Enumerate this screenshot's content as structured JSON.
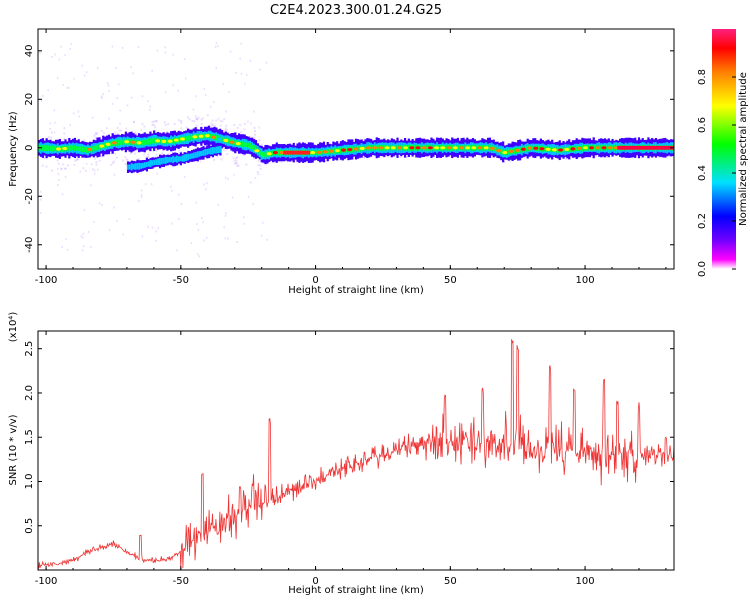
{
  "figure": {
    "title": "C2E4.2023.300.01.24.G25"
  },
  "chart_data": [
    {
      "type": "heatmap",
      "xlabel": "Height of straight line (km)",
      "ylabel": "Frequency (Hz)",
      "xlim": [
        -103,
        133
      ],
      "ylim": [
        -50,
        49
      ],
      "x_ticks": [
        -100,
        -50,
        0,
        50,
        100
      ],
      "y_ticks": [
        -40,
        -20,
        0,
        20,
        40
      ],
      "colorbar": {
        "label": "Normalized spectral amplitude",
        "range": [
          0.0,
          1.0
        ],
        "ticks": [
          0.0,
          0.2,
          0.4,
          0.6,
          0.8
        ],
        "colormap": [
          "#ff00ff",
          "#0000ff",
          "#00e0ff",
          "#00ff00",
          "#ffff00",
          "#ff0000",
          "#ff2080"
        ]
      },
      "main_band": [
        [
          -103,
          0.0
        ],
        [
          -95,
          -0.5
        ],
        [
          -90,
          0.0
        ],
        [
          -85,
          -1.0
        ],
        [
          -80,
          0.5
        ],
        [
          -75,
          2.0
        ],
        [
          -70,
          2.5
        ],
        [
          -65,
          2.0
        ],
        [
          -60,
          3.0
        ],
        [
          -55,
          2.5
        ],
        [
          -50,
          3.5
        ],
        [
          -45,
          4.5
        ],
        [
          -40,
          5.0
        ],
        [
          -35,
          3.5
        ],
        [
          -30,
          2.0
        ],
        [
          -25,
          1.0
        ],
        [
          -22,
          -1.0
        ],
        [
          -20,
          -3.0
        ],
        [
          -15,
          -2.0
        ],
        [
          -10,
          -2.0
        ],
        [
          0,
          -2.0
        ],
        [
          10,
          -1.0
        ],
        [
          20,
          0.0
        ],
        [
          30,
          0.0
        ],
        [
          40,
          0.0
        ],
        [
          50,
          0.0
        ],
        [
          60,
          0.0
        ],
        [
          65,
          0.0
        ],
        [
          70,
          -2.0
        ],
        [
          75,
          -1.0
        ],
        [
          80,
          0.0
        ],
        [
          90,
          -1.0
        ],
        [
          100,
          0.0
        ],
        [
          110,
          0.0
        ],
        [
          120,
          0.0
        ],
        [
          133,
          0.0
        ]
      ],
      "lower_band": [
        [
          -70,
          -8.0
        ],
        [
          -65,
          -7.5
        ],
        [
          -60,
          -6.0
        ],
        [
          -55,
          -5.0
        ],
        [
          -50,
          -4.5
        ],
        [
          -45,
          -3.0
        ],
        [
          -40,
          -1.5
        ],
        [
          -35,
          -0.5
        ]
      ]
    },
    {
      "type": "line",
      "xlabel": "Height of straight line (km)",
      "ylabel": "SNR (10 * v/v)",
      "scale_label": "(x10⁴)",
      "xlim": [
        -103,
        133
      ],
      "ylim": [
        0,
        2.7
      ],
      "x_ticks": [
        -100,
        -50,
        0,
        50,
        100
      ],
      "y_ticks": [
        0.5,
        1.0,
        1.5,
        2.0,
        2.5
      ],
      "color": "#ee3333",
      "trend": [
        [
          -103,
          0.05
        ],
        [
          -95,
          0.07
        ],
        [
          -90,
          0.12
        ],
        [
          -85,
          0.2
        ],
        [
          -80,
          0.25
        ],
        [
          -75,
          0.3
        ],
        [
          -70,
          0.2
        ],
        [
          -65,
          0.12
        ],
        [
          -60,
          0.1
        ],
        [
          -55,
          0.12
        ],
        [
          -50,
          0.2
        ],
        [
          -45,
          0.35
        ],
        [
          -40,
          0.45
        ],
        [
          -35,
          0.5
        ],
        [
          -30,
          0.6
        ],
        [
          -25,
          0.75
        ],
        [
          -20,
          0.75
        ],
        [
          -15,
          0.8
        ],
        [
          -10,
          0.9
        ],
        [
          -5,
          0.95
        ],
        [
          0,
          1.0
        ],
        [
          5,
          1.1
        ],
        [
          10,
          1.15
        ],
        [
          15,
          1.2
        ],
        [
          20,
          1.25
        ],
        [
          25,
          1.3
        ],
        [
          30,
          1.35
        ],
        [
          35,
          1.4
        ],
        [
          40,
          1.45
        ],
        [
          50,
          1.45
        ],
        [
          60,
          1.45
        ],
        [
          70,
          1.4
        ],
        [
          80,
          1.4
        ],
        [
          90,
          1.35
        ],
        [
          100,
          1.35
        ],
        [
          110,
          1.3
        ],
        [
          120,
          1.3
        ],
        [
          133,
          1.3
        ]
      ],
      "peaks": [
        [
          -42,
          1.12
        ],
        [
          -17,
          1.72
        ],
        [
          -28,
          0.95
        ],
        [
          -65,
          0.4
        ],
        [
          48,
          2.0
        ],
        [
          62,
          2.1
        ],
        [
          73,
          2.7
        ],
        [
          75,
          2.6
        ],
        [
          87,
          2.35
        ],
        [
          96,
          2.1
        ],
        [
          107,
          2.2
        ],
        [
          112,
          1.95
        ],
        [
          120,
          1.9
        ],
        [
          130,
          1.5
        ]
      ]
    }
  ]
}
